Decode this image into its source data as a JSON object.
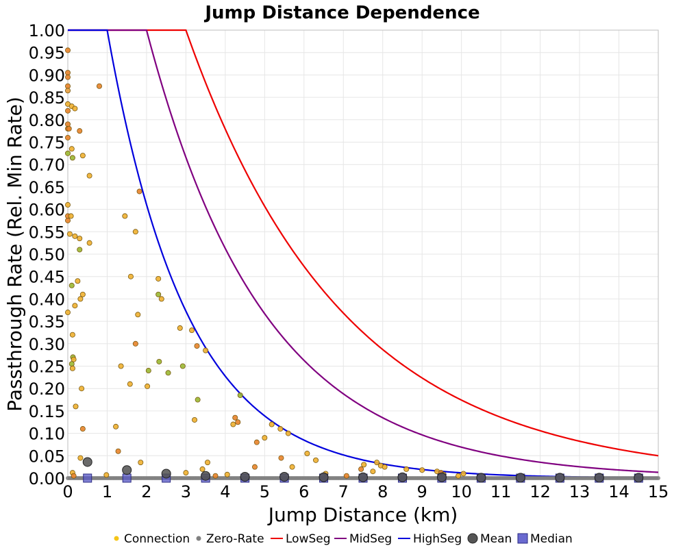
{
  "chart_data": {
    "type": "scatter",
    "title": "Jump Distance Dependence",
    "xlabel": "Jump Distance (km)",
    "ylabel": "Passthrough Rate (Rel. Min Rate)",
    "xlim": [
      0,
      15
    ],
    "ylim": [
      0,
      1
    ],
    "x_ticks": [
      "0",
      "1",
      "2",
      "3",
      "4",
      "5",
      "6",
      "7",
      "8",
      "9",
      "10",
      "11",
      "12",
      "13",
      "14",
      "15"
    ],
    "y_ticks": [
      "0.00",
      "0.05",
      "0.10",
      "0.15",
      "0.20",
      "0.25",
      "0.30",
      "0.35",
      "0.40",
      "0.45",
      "0.50",
      "0.55",
      "0.60",
      "0.65",
      "0.70",
      "0.75",
      "0.80",
      "0.85",
      "0.90",
      "0.95",
      "1.00"
    ],
    "grid": true,
    "legend_position": "bottom",
    "legend": [
      {
        "label": "Connection",
        "marker": "dot",
        "color": "#f5c518"
      },
      {
        "label": "Zero-Rate",
        "marker": "dot",
        "color": "#808080"
      },
      {
        "label": "LowSeg",
        "marker": "line",
        "color": "#ee0000"
      },
      {
        "label": "MidSeg",
        "marker": "line",
        "color": "#800080"
      },
      {
        "label": "HighSeg",
        "marker": "line",
        "color": "#0000dd"
      },
      {
        "label": "Mean",
        "marker": "circle",
        "color": "#555555"
      },
      {
        "label": "Median",
        "marker": "square",
        "color": "#6a6ad0"
      }
    ],
    "curves": [
      {
        "name": "LowSeg",
        "color": "#ee0000",
        "x_cross_1": 3.0,
        "y_at_15": 0.05
      },
      {
        "name": "MidSeg",
        "color": "#800080",
        "x_cross_1": 2.0,
        "y_at_15": 0.013
      },
      {
        "name": "HighSeg",
        "color": "#0000dd",
        "x_cross_1": 1.0,
        "y_at_15": 0.001
      }
    ],
    "connections": [
      {
        "x": 0.0,
        "y": 0.955,
        "color": "#e8832a"
      },
      {
        "x": 0.0,
        "y": 0.905,
        "color": "#e8832a"
      },
      {
        "x": 0.0,
        "y": 0.895,
        "color": "#e8832a"
      },
      {
        "x": 0.0,
        "y": 0.875,
        "color": "#e8832a"
      },
      {
        "x": 0.0,
        "y": 0.865,
        "color": "#e8a040"
      },
      {
        "x": 0.0,
        "y": 0.835,
        "color": "#f0b030"
      },
      {
        "x": 0.0,
        "y": 0.82,
        "color": "#e8832a"
      },
      {
        "x": 0.0,
        "y": 0.79,
        "color": "#e8832a"
      },
      {
        "x": 0.0,
        "y": 0.78,
        "color": "#e8832a"
      },
      {
        "x": 0.0,
        "y": 0.76,
        "color": "#e8832a"
      },
      {
        "x": 0.0,
        "y": 0.725,
        "color": "#9ab832"
      },
      {
        "x": 0.0,
        "y": 0.61,
        "color": "#f0b030"
      },
      {
        "x": 0.0,
        "y": 0.585,
        "color": "#e8832a"
      },
      {
        "x": 0.0,
        "y": 0.575,
        "color": "#e8832a"
      },
      {
        "x": 0.0,
        "y": 0.37,
        "color": "#f0b030"
      },
      {
        "x": 0.03,
        "y": 0.78,
        "color": "#e8832a"
      },
      {
        "x": 0.05,
        "y": 0.545,
        "color": "#f0b030"
      },
      {
        "x": 0.08,
        "y": 0.585,
        "color": "#f0b030"
      },
      {
        "x": 0.1,
        "y": 0.83,
        "color": "#f0b030"
      },
      {
        "x": 0.1,
        "y": 0.735,
        "color": "#f0b030"
      },
      {
        "x": 0.12,
        "y": 0.715,
        "color": "#9ab832"
      },
      {
        "x": 0.1,
        "y": 0.43,
        "color": "#9ab832"
      },
      {
        "x": 0.12,
        "y": 0.32,
        "color": "#f0b030"
      },
      {
        "x": 0.13,
        "y": 0.27,
        "color": "#9ab832"
      },
      {
        "x": 0.15,
        "y": 0.265,
        "color": "#f0b030"
      },
      {
        "x": 0.1,
        "y": 0.255,
        "color": "#9ab832"
      },
      {
        "x": 0.12,
        "y": 0.245,
        "color": "#f0b030"
      },
      {
        "x": 0.18,
        "y": 0.825,
        "color": "#f0b030"
      },
      {
        "x": 0.18,
        "y": 0.54,
        "color": "#f0b030"
      },
      {
        "x": 0.18,
        "y": 0.385,
        "color": "#f0b030"
      },
      {
        "x": 0.25,
        "y": 0.44,
        "color": "#f0b030"
      },
      {
        "x": 0.3,
        "y": 0.775,
        "color": "#e8832a"
      },
      {
        "x": 0.3,
        "y": 0.535,
        "color": "#f0b030"
      },
      {
        "x": 0.3,
        "y": 0.51,
        "color": "#9ab832"
      },
      {
        "x": 0.32,
        "y": 0.4,
        "color": "#f0b030"
      },
      {
        "x": 0.35,
        "y": 0.2,
        "color": "#f0b030"
      },
      {
        "x": 0.38,
        "y": 0.72,
        "color": "#f0b030"
      },
      {
        "x": 0.38,
        "y": 0.41,
        "color": "#f0b030"
      },
      {
        "x": 0.38,
        "y": 0.11,
        "color": "#e8832a"
      },
      {
        "x": 0.2,
        "y": 0.16,
        "color": "#f0b030"
      },
      {
        "x": 0.32,
        "y": 0.045,
        "color": "#f0b030"
      },
      {
        "x": 0.12,
        "y": 0.012,
        "color": "#f0b030"
      },
      {
        "x": 0.15,
        "y": 0.005,
        "color": "#e8832a"
      },
      {
        "x": 0.55,
        "y": 0.675,
        "color": "#f0b030"
      },
      {
        "x": 0.55,
        "y": 0.525,
        "color": "#f0b030"
      },
      {
        "x": 0.8,
        "y": 0.875,
        "color": "#e8832a"
      },
      {
        "x": 0.98,
        "y": 0.007,
        "color": "#f0b030"
      },
      {
        "x": 1.22,
        "y": 0.115,
        "color": "#f0b030"
      },
      {
        "x": 1.28,
        "y": 0.06,
        "color": "#e8832a"
      },
      {
        "x": 1.35,
        "y": 0.25,
        "color": "#f0b030"
      },
      {
        "x": 1.45,
        "y": 0.585,
        "color": "#f0b030"
      },
      {
        "x": 1.58,
        "y": 0.21,
        "color": "#f0b030"
      },
      {
        "x": 1.6,
        "y": 0.45,
        "color": "#f0b030"
      },
      {
        "x": 1.72,
        "y": 0.55,
        "color": "#f0b030"
      },
      {
        "x": 1.72,
        "y": 0.3,
        "color": "#e8832a"
      },
      {
        "x": 1.78,
        "y": 0.365,
        "color": "#f0b030"
      },
      {
        "x": 1.82,
        "y": 0.64,
        "color": "#e8832a"
      },
      {
        "x": 1.85,
        "y": 0.035,
        "color": "#f0b030"
      },
      {
        "x": 2.02,
        "y": 0.205,
        "color": "#f0b030"
      },
      {
        "x": 2.05,
        "y": 0.24,
        "color": "#9ab832"
      },
      {
        "x": 2.3,
        "y": 0.445,
        "color": "#f0b030"
      },
      {
        "x": 2.3,
        "y": 0.41,
        "color": "#9ab832"
      },
      {
        "x": 2.32,
        "y": 0.26,
        "color": "#9ab832"
      },
      {
        "x": 2.38,
        "y": 0.4,
        "color": "#f0b030"
      },
      {
        "x": 2.55,
        "y": 0.235,
        "color": "#9ab832"
      },
      {
        "x": 2.85,
        "y": 0.335,
        "color": "#f0b030"
      },
      {
        "x": 2.92,
        "y": 0.25,
        "color": "#9ab832"
      },
      {
        "x": 3.0,
        "y": 0.012,
        "color": "#f0b030"
      },
      {
        "x": 3.15,
        "y": 0.33,
        "color": "#f0b030"
      },
      {
        "x": 3.22,
        "y": 0.13,
        "color": "#f0b030"
      },
      {
        "x": 3.28,
        "y": 0.295,
        "color": "#e8832a"
      },
      {
        "x": 3.3,
        "y": 0.175,
        "color": "#9ab832"
      },
      {
        "x": 3.42,
        "y": 0.02,
        "color": "#f0b030"
      },
      {
        "x": 3.5,
        "y": 0.285,
        "color": "#f0b030"
      },
      {
        "x": 3.55,
        "y": 0.035,
        "color": "#f0b030"
      },
      {
        "x": 3.75,
        "y": 0.005,
        "color": "#e8832a"
      },
      {
        "x": 4.05,
        "y": 0.008,
        "color": "#f0b030"
      },
      {
        "x": 4.2,
        "y": 0.12,
        "color": "#f0b030"
      },
      {
        "x": 4.25,
        "y": 0.135,
        "color": "#e8832a"
      },
      {
        "x": 4.32,
        "y": 0.125,
        "color": "#e8832a"
      },
      {
        "x": 4.38,
        "y": 0.185,
        "color": "#9ab832"
      },
      {
        "x": 4.75,
        "y": 0.025,
        "color": "#e8832a"
      },
      {
        "x": 4.8,
        "y": 0.08,
        "color": "#e8832a"
      },
      {
        "x": 5.0,
        "y": 0.09,
        "color": "#f0b030"
      },
      {
        "x": 5.18,
        "y": 0.12,
        "color": "#f0b030"
      },
      {
        "x": 5.4,
        "y": 0.11,
        "color": "#f0b030"
      },
      {
        "x": 5.42,
        "y": 0.045,
        "color": "#e8832a"
      },
      {
        "x": 5.6,
        "y": 0.1,
        "color": "#f0b030"
      },
      {
        "x": 5.7,
        "y": 0.025,
        "color": "#f0b030"
      },
      {
        "x": 6.08,
        "y": 0.055,
        "color": "#f0b030"
      },
      {
        "x": 6.3,
        "y": 0.04,
        "color": "#f0b030"
      },
      {
        "x": 6.55,
        "y": 0.01,
        "color": "#f0b030"
      },
      {
        "x": 7.08,
        "y": 0.005,
        "color": "#e8832a"
      },
      {
        "x": 7.45,
        "y": 0.02,
        "color": "#e8832a"
      },
      {
        "x": 7.52,
        "y": 0.03,
        "color": "#f0b030"
      },
      {
        "x": 7.75,
        "y": 0.015,
        "color": "#f0b030"
      },
      {
        "x": 7.85,
        "y": 0.035,
        "color": "#f0b030"
      },
      {
        "x": 7.95,
        "y": 0.028,
        "color": "#f0b030"
      },
      {
        "x": 8.05,
        "y": 0.025,
        "color": "#f0b030"
      },
      {
        "x": 8.6,
        "y": 0.02,
        "color": "#f0b030"
      },
      {
        "x": 9.0,
        "y": 0.018,
        "color": "#f0b030"
      },
      {
        "x": 9.38,
        "y": 0.015,
        "color": "#f0b030"
      },
      {
        "x": 9.48,
        "y": 0.012,
        "color": "#e8832a"
      },
      {
        "x": 9.55,
        "y": 0.008,
        "color": "#f0b030"
      },
      {
        "x": 9.92,
        "y": 0.005,
        "color": "#f0b030"
      },
      {
        "x": 10.05,
        "y": 0.01,
        "color": "#f0b030"
      }
    ],
    "zero_rate_x_range": [
      0,
      15
    ],
    "means": [
      {
        "x": 0.5,
        "y": 0.036
      },
      {
        "x": 1.5,
        "y": 0.018
      },
      {
        "x": 2.5,
        "y": 0.01
      },
      {
        "x": 3.5,
        "y": 0.005
      },
      {
        "x": 4.5,
        "y": 0.003
      },
      {
        "x": 5.5,
        "y": 0.003
      },
      {
        "x": 6.5,
        "y": 0.002
      },
      {
        "x": 7.5,
        "y": 0.002
      },
      {
        "x": 8.5,
        "y": 0.002
      },
      {
        "x": 9.5,
        "y": 0.002
      },
      {
        "x": 10.5,
        "y": 0.001
      },
      {
        "x": 11.5,
        "y": 0.001
      },
      {
        "x": 12.5,
        "y": 0.001
      },
      {
        "x": 13.5,
        "y": 0.001
      },
      {
        "x": 14.5,
        "y": 0.001
      }
    ],
    "medians": [
      {
        "x": 0.5,
        "y": 0
      },
      {
        "x": 1.5,
        "y": 0
      },
      {
        "x": 2.5,
        "y": 0
      },
      {
        "x": 3.5,
        "y": 0
      },
      {
        "x": 4.5,
        "y": 0
      },
      {
        "x": 5.5,
        "y": 0
      },
      {
        "x": 6.5,
        "y": 0
      },
      {
        "x": 7.5,
        "y": 0
      },
      {
        "x": 8.5,
        "y": 0
      },
      {
        "x": 9.5,
        "y": 0
      },
      {
        "x": 10.5,
        "y": 0
      },
      {
        "x": 11.5,
        "y": 0
      },
      {
        "x": 12.5,
        "y": 0
      },
      {
        "x": 13.5,
        "y": 0
      },
      {
        "x": 14.5,
        "y": 0
      }
    ]
  }
}
